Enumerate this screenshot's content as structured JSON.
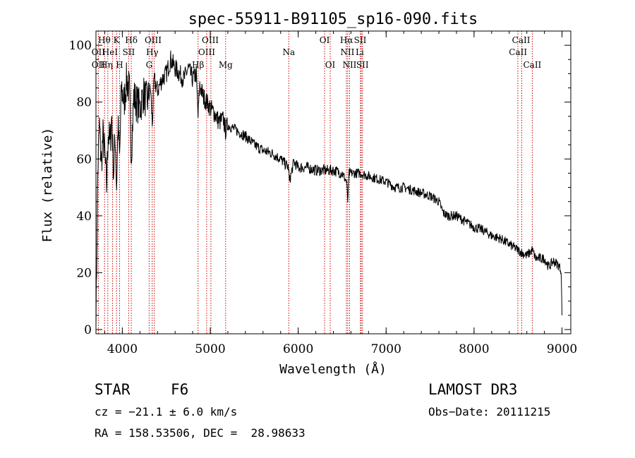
{
  "chart_data": {
    "type": "line",
    "title": "spec-55911-B91105_sp16-090.fits",
    "xlabel": "Wavelength (Å)",
    "ylabel": "Flux (relative)",
    "xlim": [
      3700,
      9100
    ],
    "ylim": [
      -1.5,
      105
    ],
    "x_ticks": [
      4000,
      5000,
      6000,
      7000,
      8000,
      9000
    ],
    "y_ticks": [
      0,
      20,
      40,
      60,
      80,
      100
    ],
    "grid": false,
    "line_color": "#000000",
    "marker_color": "#cc0000",
    "series": [
      {
        "name": "flux",
        "x": [
          3700,
          3720,
          3740,
          3760,
          3780,
          3800,
          3820,
          3840,
          3860,
          3880,
          3900,
          3920,
          3934,
          3950,
          3969,
          3990,
          4020,
          4050,
          4080,
          4102,
          4130,
          4160,
          4200,
          4240,
          4280,
          4300,
          4320,
          4340,
          4361,
          4400,
          4450,
          4500,
          4550,
          4600,
          4650,
          4700,
          4750,
          4800,
          4840,
          4861,
          4880,
          4920,
          4960,
          5000,
          5050,
          5100,
          5150,
          5172,
          5200,
          5300,
          5400,
          5500,
          5600,
          5700,
          5800,
          5890,
          5900,
          5950,
          6000,
          6100,
          6200,
          6300,
          6400,
          6500,
          6550,
          6563,
          6580,
          6650,
          6700,
          6800,
          6900,
          7000,
          7100,
          7200,
          7300,
          7400,
          7500,
          7600,
          7650,
          7700,
          7800,
          7900,
          8000,
          8100,
          8200,
          8300,
          8400,
          8498,
          8542,
          8600,
          8662,
          8700,
          8800,
          8850,
          8900,
          8950,
          8990,
          9000
        ],
        "y": [
          0,
          55,
          72,
          58,
          68,
          62,
          50,
          70,
          65,
          75,
          55,
          68,
          50,
          72,
          60,
          85,
          80,
          88,
          84,
          62,
          82,
          80,
          78,
          83,
          80,
          82,
          85,
          72,
          88,
          84,
          88,
          90,
          95,
          92,
          90,
          88,
          92,
          88,
          90,
          75,
          86,
          82,
          80,
          78,
          76,
          73,
          74,
          70,
          72,
          70,
          68,
          65,
          63,
          62,
          60,
          57,
          52,
          59,
          57,
          57,
          56,
          56,
          56,
          55,
          52,
          45,
          55,
          55,
          55,
          54,
          53,
          52,
          50,
          50,
          49,
          48,
          47,
          45,
          41,
          40,
          40,
          38,
          36,
          35,
          33,
          32,
          30,
          28,
          27,
          26,
          28,
          25,
          25,
          22,
          24,
          23,
          21,
          5
        ]
      }
    ],
    "lines": [
      {
        "name": "Hθ",
        "x": 3798
      },
      {
        "name": "OII",
        "x": 3727
      },
      {
        "name": "Hη",
        "x": 3835
      },
      {
        "name": "HeI",
        "x": 3889
      },
      {
        "name": "K",
        "x": 3934
      },
      {
        "name": "H",
        "x": 3969
      },
      {
        "name": "SII",
        "x": 4072
      },
      {
        "name": "Hδ",
        "x": 4102
      },
      {
        "name": "OIII",
        "x": 4363
      },
      {
        "name": "Hγ",
        "x": 4340
      },
      {
        "name": "G",
        "x": 4305
      },
      {
        "name": "Hβ",
        "x": 4861
      },
      {
        "name": "OIII",
        "x": 4959
      },
      {
        "name": "OIII",
        "x": 5007
      },
      {
        "name": "Mg",
        "x": 5175
      },
      {
        "name": "Na",
        "x": 5893
      },
      {
        "name": "OI",
        "x": 6300
      },
      {
        "name": "OI",
        "x": 6364
      },
      {
        "name": "Hα",
        "x": 6563
      },
      {
        "name": "NII",
        "x": 6548
      },
      {
        "name": "NII",
        "x": 6584
      },
      {
        "name": "SII",
        "x": 6717
      },
      {
        "name": "Li",
        "x": 6707
      },
      {
        "name": "SII",
        "x": 6731
      },
      {
        "name": "CaII",
        "x": 8498
      },
      {
        "name": "CaII",
        "x": 8542
      },
      {
        "name": "CaII",
        "x": 8662
      }
    ],
    "label_rows": [
      [
        {
          "text": "Hθ",
          "x": 3795
        },
        {
          "text": "K",
          "x": 3934
        },
        {
          "text": "Hδ",
          "x": 4102
        },
        {
          "text": "OIII",
          "x": 4350
        },
        {
          "text": "OIII",
          "x": 5000
        },
        {
          "text": "OI",
          "x": 6300
        },
        {
          "text": "Hα",
          "x": 6550
        },
        {
          "text": "SII",
          "x": 6705
        },
        {
          "text": "CaII",
          "x": 8535
        }
      ],
      [
        {
          "text": "OII",
          "x": 3727
        },
        {
          "text": "HeI",
          "x": 3860
        },
        {
          "text": "SII",
          "x": 4072
        },
        {
          "text": "Hγ",
          "x": 4340
        },
        {
          "text": "OIII",
          "x": 4959
        },
        {
          "text": "Na",
          "x": 5893
        },
        {
          "text": "NII",
          "x": 6560
        },
        {
          "text": "Li",
          "x": 6700
        },
        {
          "text": "CaII",
          "x": 8500
        }
      ],
      [
        {
          "text": "OII",
          "x": 3727
        },
        {
          "text": "Hη",
          "x": 3820
        },
        {
          "text": "H",
          "x": 3969
        },
        {
          "text": "G",
          "x": 4305
        },
        {
          "text": "Hβ",
          "x": 4861
        },
        {
          "text": "Mg",
          "x": 5175
        },
        {
          "text": "OI",
          "x": 6364
        },
        {
          "text": "NII",
          "x": 6584
        },
        {
          "text": "SII",
          "x": 6731
        },
        {
          "text": "CaII",
          "x": 8662
        }
      ]
    ]
  },
  "info": {
    "class_label": "STAR",
    "subclass": "F6",
    "survey": "LAMOST DR3",
    "cz": "cz = −21.1 ± 6.0 km/s",
    "obs_date": "Obs−Date: 20111215",
    "coords": "RA = 158.53506, DEC =  28.98633"
  }
}
